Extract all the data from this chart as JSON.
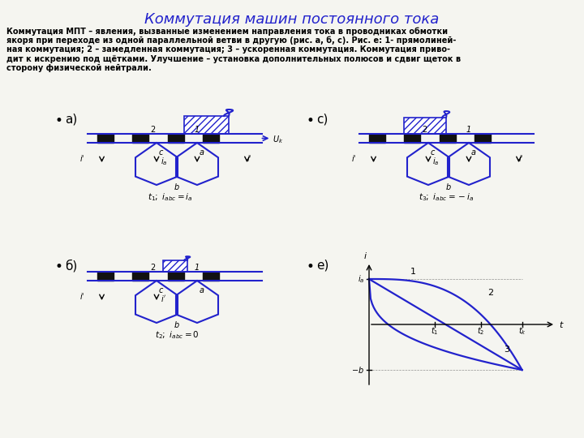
{
  "title": "Коммутация машин постоянного тока",
  "lines": [
    "Коммутация МПТ – явления, вызванные изменением направления тока в проводниках обмотки",
    "якоря при переходе из одной параллельной ветви в другую (рис. а, б, с). Рис. е: 1- прямолиней-",
    "ная коммутация; 2 – замедленная коммутация; 3 – ускоренная коммутация. Коммутация приво-",
    "дит к искрению под щётками. Улучшение – установка дополнительных полюсов и сдвиг щеток в",
    "сторону физической нейтрали."
  ],
  "bg_color": "#f5f5f0",
  "title_color": "#2222cc",
  "text_color": "#000000",
  "diagram_color": "#2222cc",
  "seg_color": "#111111"
}
